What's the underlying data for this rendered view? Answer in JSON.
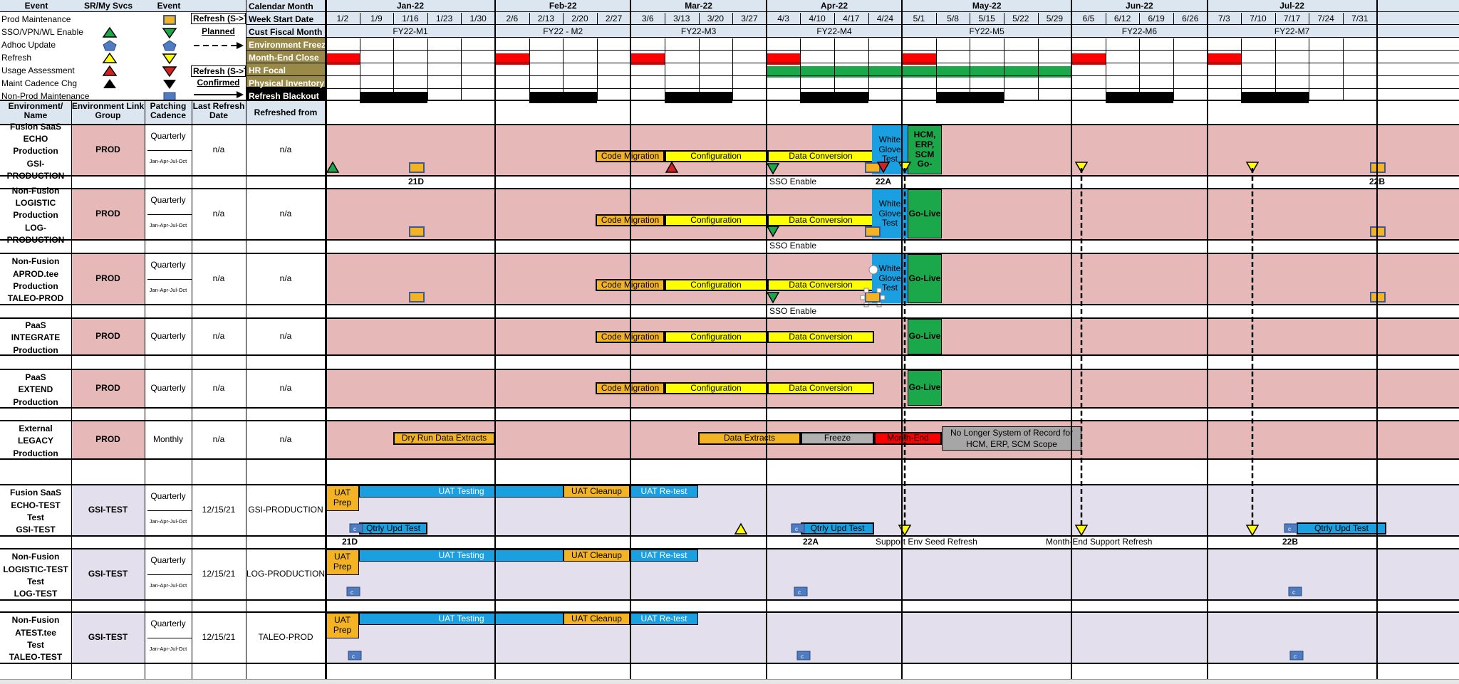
{
  "legend": {
    "headers": {
      "event": "Event",
      "sr": "SR/My Svcs",
      "event2": "Event"
    },
    "items": [
      "Prod Maintenance",
      "SSO/VPN/WL Enable",
      "Adhoc Update",
      "Refresh",
      "Usage Assessment",
      "Maint Cadence Chg",
      "Non-Prod Maintenance"
    ],
    "refresh_plan_top": "Refresh (S->T",
    "planned": "Planned",
    "refresh_plan_bottom": "Refresh (S->T",
    "confirmed": "Confirmed",
    "row_labels": [
      "Calendar Month",
      "Week Start Date",
      "Cust Fiscal Month",
      "Environment Freeze",
      "Month-End Close",
      "HR Focal",
      "Physical Inventory",
      "Refresh Blackout"
    ],
    "colors": {
      "sso": "#1aa84b",
      "adhoc": "#4f7bc0",
      "refresh": "#ffff00",
      "usage": "#d42020",
      "maint": "#000000",
      "prodmaint": "#f3b323",
      "band": "#998a4a"
    }
  },
  "columns": {
    "env": "Environment/ Name",
    "group": "Environment Link Group",
    "patch": "Patching Cadence",
    "last": "Last Refresh Date",
    "from": "Refreshed from"
  },
  "calendar": {
    "months": [
      "Jan-22",
      "Feb-22",
      "Mar-22",
      "Apr-22",
      "May-22",
      "Jun-22",
      "Jul-22"
    ],
    "weeks": [
      "1/2",
      "1/9",
      "1/16",
      "1/23",
      "1/30",
      "2/6",
      "2/13",
      "2/20",
      "2/27",
      "3/6",
      "3/13",
      "3/20",
      "3/27",
      "4/3",
      "4/10",
      "4/17",
      "4/24",
      "5/1",
      "5/8",
      "5/15",
      "5/22",
      "5/29",
      "6/5",
      "6/12",
      "6/19",
      "6/26",
      "7/3",
      "7/10",
      "7/17",
      "7/24",
      "7/31"
    ],
    "fiscal": [
      "FY22-M1",
      "FY22 - M2",
      "FY22-M3",
      "FY22-M4",
      "FY22-M5",
      "FY22-M6",
      "FY22-M7"
    ]
  },
  "environments": [
    {
      "name": "Fusion SaaS\nECHO\nProduction\nGSI-PRODUCTION",
      "group": "PROD",
      "cadence": "Quarterly",
      "cadence_sub": "Jan-Apr-Jul-Oct",
      "last": "n/a",
      "from": "n/a",
      "kind": "prod"
    },
    {
      "name": "Non-Fusion\nLOGISTIC\nProduction\nLOG-PRODUCTION",
      "group": "PROD",
      "cadence": "Quarterly",
      "cadence_sub": "Jan-Apr-Jul-Oct",
      "last": "n/a",
      "from": "n/a",
      "kind": "prod"
    },
    {
      "name": "Non-Fusion\nAPROD.tee\nProduction\nTALEO-PROD",
      "group": "PROD",
      "cadence": "Quarterly",
      "cadence_sub": "Jan-Apr-Jul-Oct",
      "last": "n/a",
      "from": "n/a",
      "kind": "prod"
    },
    {
      "name": "PaaS\nINTEGRATE\nProduction",
      "group": "PROD",
      "cadence": "Quarterly",
      "cadence_sub": "",
      "last": "n/a",
      "from": "n/a",
      "kind": "prod"
    },
    {
      "name": "PaaS\nEXTEND\nProduction",
      "group": "PROD",
      "cadence": "Quarterly",
      "cadence_sub": "",
      "last": "n/a",
      "from": "n/a",
      "kind": "prod"
    },
    {
      "name": "External\nLEGACY\nProduction",
      "group": "PROD",
      "cadence": "Monthly",
      "cadence_sub": "",
      "last": "n/a",
      "from": "n/a",
      "kind": "prod"
    },
    {
      "name": "Fusion SaaS\nECHO-TEST\nTest\nGSI-TEST",
      "group": "GSI-TEST",
      "cadence": "Quarterly",
      "cadence_sub": "Jan-Apr-Jul-Oct",
      "last": "12/15/21",
      "from": "GSI-PRODUCTION",
      "kind": "test"
    },
    {
      "name": "Non-Fusion\nLOGISTIC-TEST\nTest\nLOG-TEST",
      "group": "GSI-TEST",
      "cadence": "Quarterly",
      "cadence_sub": "Jan-Apr-Jul-Oct",
      "last": "12/15/21",
      "from": "LOG-PRODUCTION",
      "kind": "test"
    },
    {
      "name": "Non-Fusion\nATEST.tee\nTest\nTALEO-TEST",
      "group": "GSI-TEST",
      "cadence": "Quarterly",
      "cadence_sub": "Jan-Apr-Jul-Oct",
      "last": "12/15/21",
      "from": "TALEO-PROD",
      "kind": "test"
    }
  ],
  "bar_labels": {
    "code_migration": "Code Migration",
    "configuration": "Configuration",
    "data_conversion": "Data Conversion",
    "white_glove": "White\nGlove\nTest",
    "hcm_golive": "HCM,\nERP,\nSCM\nGo-",
    "golive": "Go-Live",
    "dry_run": "Dry Run Data Extracts",
    "data_extracts": "Data Extracts",
    "freeze": "Freeze",
    "month_end": "Month-End",
    "no_longer": "No Longer System of Record for\nHCM, ERP, SCM Scope",
    "uat_prep": "UAT\nPrep",
    "uat_testing": "UAT Testing",
    "uat_cleanup": "UAT Cleanup",
    "uat_retest": "UAT Re-test",
    "qtrly": "Qtrly Upd Test"
  },
  "annotations": {
    "sso_enable": "SSO Enable",
    "r21d": "21D",
    "r22a": "22A",
    "r22b": "22B",
    "support_seed": "Support Env Seed Refresh",
    "month_end_support": "Month-End Support Refresh"
  }
}
